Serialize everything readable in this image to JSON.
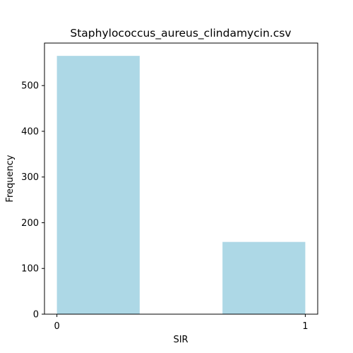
{
  "chart_data": {
    "type": "bar",
    "title": "Staphylococcus_aureus_clindamycin.csv",
    "xlabel": "SIR",
    "ylabel": "Frequency",
    "x_ticks": [
      "0",
      "1"
    ],
    "y_ticks": [
      "0",
      "100",
      "200",
      "300",
      "400",
      "500"
    ],
    "xlim": [
      -0.05,
      1.05
    ],
    "ylim": [
      0,
      593
    ],
    "bins": [
      {
        "x_start": 0.0,
        "x_end": 0.3333,
        "value": 565
      },
      {
        "x_start": 0.3333,
        "x_end": 0.6667,
        "value": 0
      },
      {
        "x_start": 0.6667,
        "x_end": 1.0,
        "value": 158
      }
    ],
    "bar_color": "#add8e6",
    "grid": false
  }
}
